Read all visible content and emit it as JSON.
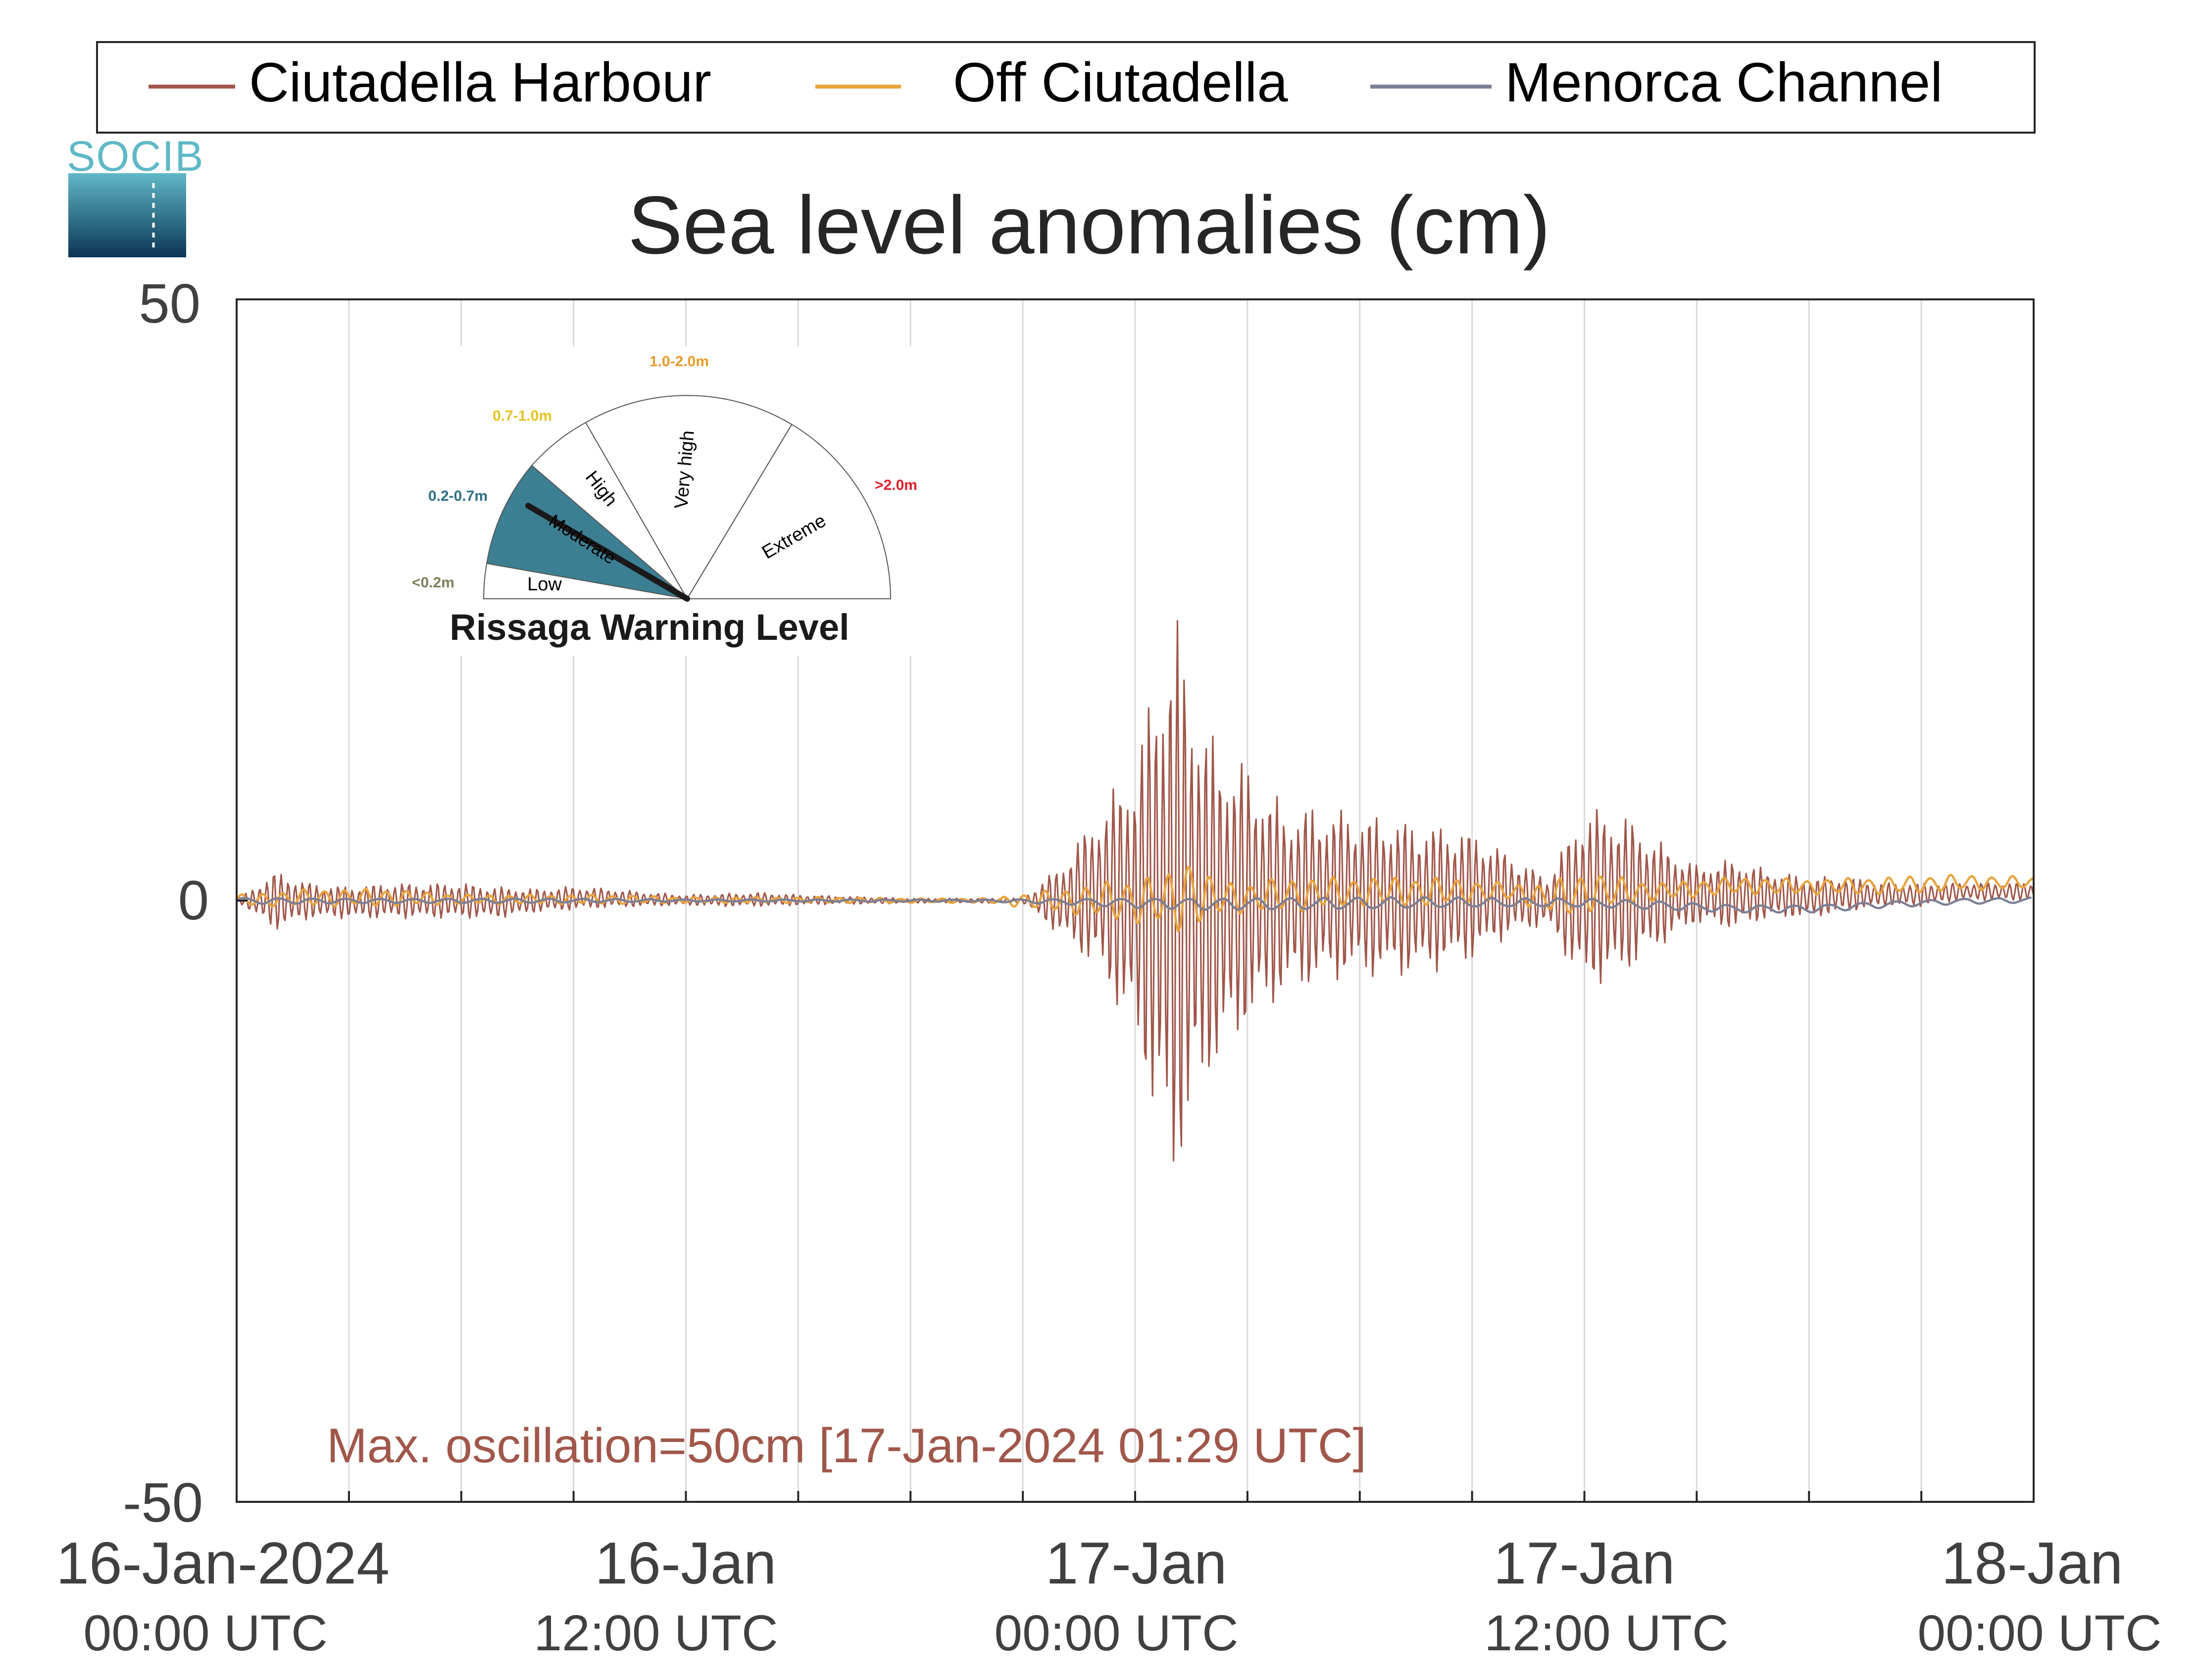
{
  "colors": {
    "harbour": "#A0574A",
    "offshore": "#E8A33C",
    "channel": "#7C7F94",
    "grid": "#D9D9D9",
    "axis": "#262626",
    "tick_text": "#404040",
    "gauge_fill": "#3C7F93",
    "label_low": "#7F7F5A",
    "label_moderate": "#2F6F88",
    "label_high": "#E6C21F",
    "label_very_high": "#E89A2B",
    "label_extreme": "#E0202A"
  },
  "logo": {
    "text": "SOCIB"
  },
  "legend": {
    "items": [
      {
        "label": "Ciutadella Harbour"
      },
      {
        "label": "Off Ciutadella"
      },
      {
        "label": "Menorca Channel"
      }
    ]
  },
  "annotation": {
    "text": "Max. oscillation=50cm [17-Jan-2024 01:29 UTC]"
  },
  "gauge": {
    "title": "Rissaga Warning Level",
    "current_level": "Moderate",
    "sectors": [
      {
        "name": "Low",
        "range": "<0.2m"
      },
      {
        "name": "Moderate",
        "range": "0.2-0.7m"
      },
      {
        "name": "High",
        "range": "0.7-1.0m"
      },
      {
        "name": "Very high",
        "range": "1.0-2.0m"
      },
      {
        "name": "Extreme",
        "range": ">2.0m"
      }
    ]
  },
  "chart_data": {
    "type": "line",
    "title": "Sea level anomalies (cm)",
    "xlabel": "",
    "ylabel": "",
    "x_unit": "hours since 16-Jan-2024 00:00 UTC",
    "xlim": [
      0,
      48
    ],
    "ylim": [
      -50,
      50
    ],
    "grid": "vertical",
    "legend_position": "top",
    "y_ticks": [
      "50",
      "0",
      "-50"
    ],
    "x_ticks": [
      {
        "line1": "16-Jan-2024",
        "line2": "00:00 UTC"
      },
      {
        "line1": "16-Jan",
        "line2": "12:00 UTC"
      },
      {
        "line1": "17-Jan",
        "line2": "00:00 UTC"
      },
      {
        "line1": "17-Jan",
        "line2": "12:00 UTC"
      },
      {
        "line1": "18-Jan",
        "line2": "00:00 UTC"
      }
    ],
    "series": [
      {
        "name": "Ciutadella Harbour",
        "x": [
          0,
          1,
          2,
          3,
          4,
          5,
          6,
          7,
          8,
          9,
          10,
          11,
          12,
          13,
          14,
          15,
          16,
          17,
          18,
          19,
          20,
          21,
          22,
          23,
          24,
          25,
          26,
          27,
          28,
          29,
          30,
          31,
          32,
          33,
          34,
          35,
          36,
          37,
          38,
          39,
          40,
          41,
          42,
          43,
          44,
          45,
          46,
          47,
          48
        ],
        "upper": [
          0,
          2.5,
          1.5,
          1.2,
          1.5,
          1.5,
          1.5,
          1.2,
          1.0,
          1.2,
          1.0,
          0.7,
          0.5,
          0.6,
          0.7,
          0.5,
          0.4,
          0.3,
          0.2,
          0.2,
          0.2,
          0.2,
          3.0,
          7.5,
          12.0,
          25.0,
          14.0,
          11.5,
          8.0,
          8.0,
          7.5,
          7.0,
          6.5,
          6.0,
          4.0,
          2.0,
          8.0,
          7.5,
          5.0,
          3.0,
          3.5,
          2.5,
          2.0,
          2.0,
          1.5,
          1.5,
          1.5,
          1.5,
          1.5
        ],
        "lower": [
          0,
          -2.5,
          -1.5,
          -1.5,
          -1.5,
          -1.5,
          -1.5,
          -1.5,
          -1.0,
          -0.8,
          -0.6,
          -0.5,
          -0.4,
          -0.5,
          -0.5,
          -0.4,
          -0.3,
          -0.3,
          -0.2,
          -0.2,
          -0.2,
          -0.2,
          -3.0,
          -6.0,
          -12.0,
          -25.0,
          -15.0,
          -11.0,
          -8.0,
          -7.0,
          -6.5,
          -6.5,
          -6.0,
          -5.0,
          -3.0,
          -2.0,
          -7.5,
          -6.5,
          -4.0,
          -2.0,
          -2.5,
          -1.5,
          -1.5,
          -1.0,
          -0.5,
          -0.5,
          0.0,
          0.0,
          0.0
        ]
      },
      {
        "name": "Off Ciutadella",
        "x": [
          0,
          2,
          4,
          6,
          8,
          10,
          12,
          14,
          16,
          18,
          20,
          22,
          23,
          24,
          25,
          25.3,
          26,
          27,
          28,
          30,
          32,
          34,
          35,
          35.5,
          36,
          37,
          38,
          40,
          42,
          44,
          46,
          48
        ],
        "upper": [
          0.5,
          1.0,
          1.0,
          0.5,
          0.5,
          0.5,
          0.3,
          0.3,
          0.3,
          0.2,
          0.2,
          1.0,
          1.5,
          2.0,
          2.5,
          4.5,
          2.0,
          1.5,
          2.0,
          2.0,
          2.0,
          1.5,
          1.5,
          2.0,
          2.5,
          2.0,
          1.5,
          2.0,
          1.8,
          2.0,
          2.2,
          2.0
        ],
        "lower": [
          -0.5,
          -0.5,
          -0.5,
          -0.3,
          -0.3,
          -0.3,
          -0.2,
          -0.2,
          -0.2,
          -0.2,
          -0.2,
          -1.0,
          -1.5,
          -2.0,
          -2.5,
          -3.0,
          -1.5,
          -1.0,
          -1.0,
          -0.5,
          -0.5,
          0.0,
          -1.0,
          -1.5,
          -1.0,
          -0.5,
          0.0,
          0.5,
          0.5,
          0.5,
          0.8,
          1.0
        ]
      },
      {
        "name": "Menorca Channel",
        "x": [
          0,
          4,
          8,
          12,
          16,
          20,
          22,
          24,
          26,
          28,
          30,
          32,
          34,
          36,
          38,
          40,
          42,
          44,
          46,
          48
        ],
        "upper": [
          0.3,
          0.2,
          0.2,
          0.1,
          0.1,
          0.1,
          0.2,
          0.3,
          0.3,
          0.3,
          0.3,
          0.3,
          0.2,
          0.2,
          0.0,
          -0.3,
          -0.3,
          0.0,
          0.2,
          0.3
        ],
        "lower": [
          -0.3,
          -0.2,
          -0.2,
          -0.1,
          -0.1,
          -0.1,
          -0.3,
          -0.6,
          -0.8,
          -0.8,
          -0.8,
          -0.7,
          -0.6,
          -0.6,
          -0.8,
          -1.0,
          -1.0,
          -0.6,
          -0.3,
          -0.2
        ]
      }
    ]
  }
}
